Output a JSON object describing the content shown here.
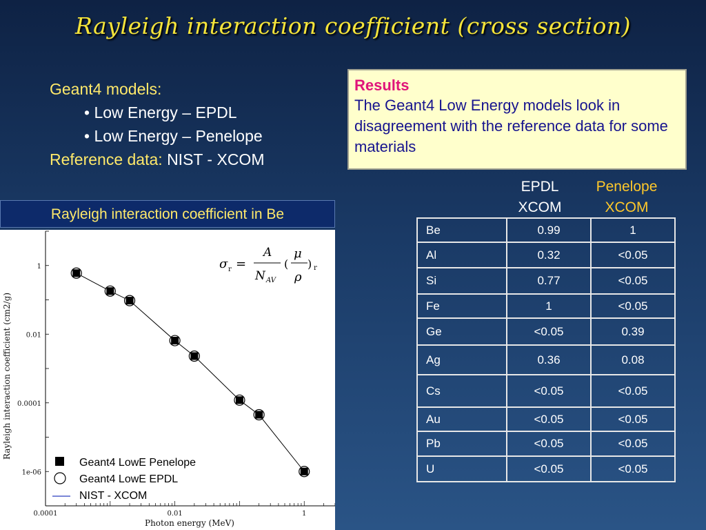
{
  "slide": {
    "title": "Rayleigh interaction coefficient (cross section)",
    "models_heading": "Geant4 models:",
    "models": [
      "• Low Energy – EPDL",
      "• Low Energy – Penelope"
    ],
    "reference_label": "Reference data:",
    "reference_value": "NIST - XCOM"
  },
  "results_box": {
    "title": "Results",
    "text": "The Geant4 Low Energy models look in disagreement with the reference data for some materials"
  },
  "chart_title": "Rayleigh interaction coefficient in Be",
  "formula": {
    "sigma": "σ",
    "sub_r": "r",
    "eq": "=",
    "A": "A",
    "N": "N",
    "AV": "AV",
    "lp": "(",
    "mu": "μ",
    "rho": "ρ",
    "rp": ")"
  },
  "table": {
    "header": {
      "epdl": [
        "EPDL",
        "XCOM"
      ],
      "penelope": [
        "Penelope",
        "XCOM"
      ]
    },
    "rows": [
      {
        "element": "Be",
        "epdl": "0.99",
        "penelope": "1"
      },
      {
        "element": "Al",
        "epdl": "0.32",
        "penelope": "<0.05"
      },
      {
        "element": "Si",
        "epdl": "0.77",
        "penelope": "<0.05"
      },
      {
        "element": "Fe",
        "epdl": "1",
        "penelope": "<0.05"
      },
      {
        "element": "Ge",
        "epdl": "<0.05",
        "penelope": "0.39"
      },
      {
        "element": "Ag",
        "epdl": "0.36",
        "penelope": "0.08"
      },
      {
        "element": "Cs",
        "epdl": "<0.05",
        "penelope": "<0.05"
      },
      {
        "element": "Au",
        "epdl": "<0.05",
        "penelope": "<0.05"
      },
      {
        "element": "Pb",
        "epdl": "<0.05",
        "penelope": "<0.05"
      },
      {
        "element": "U",
        "epdl": "<0.05",
        "penelope": "<0.05"
      }
    ]
  },
  "colors": {
    "title": "#f5e43a",
    "accent_yellow": "#ffe96a",
    "penelope_header": "#ffc82a",
    "results_bg": "#ffffcc",
    "results_title": "#e0147a",
    "results_text": "#16138e"
  },
  "chart_data": {
    "type": "scatter",
    "title": "",
    "xlabel": "Photon energy (MeV)",
    "ylabel": "Rayleigh interaction coefficient (cm2/g)",
    "xscale": "log",
    "yscale": "log",
    "xlim": [
      0.0001,
      3
    ],
    "ylim": [
      1e-07,
      10
    ],
    "xticks": [
      0.0001,
      0.01,
      1
    ],
    "xtick_labels": [
      "0.0001",
      "0.01",
      "1"
    ],
    "yticks": [
      1,
      0.01,
      0.0001,
      1e-06
    ],
    "ytick_labels": [
      "1",
      "0.01",
      "0.0001",
      "1e-06"
    ],
    "legend_position": "bottom-left",
    "series": [
      {
        "name": "Geant4 LowE Penelope",
        "marker": "filled-square",
        "x": [
          0.0003,
          0.001,
          0.002,
          0.01,
          0.02,
          0.1,
          0.2,
          1
        ],
        "y": [
          0.6,
          0.18,
          0.095,
          0.0065,
          0.0023,
          0.00012,
          4.5e-05,
          1e-06
        ]
      },
      {
        "name": "Geant4 LowE EPDL",
        "marker": "open-circle",
        "x": [
          0.0003,
          0.001,
          0.002,
          0.01,
          0.02,
          0.1,
          0.2,
          1
        ],
        "y": [
          0.6,
          0.18,
          0.095,
          0.0065,
          0.0023,
          0.00012,
          4.5e-05,
          1e-06
        ]
      },
      {
        "name": "NIST - XCOM",
        "marker": "line",
        "x": [
          0.0003,
          0.001,
          0.002,
          0.01,
          0.02,
          0.1,
          0.2,
          1
        ],
        "y": [
          0.6,
          0.18,
          0.095,
          0.0065,
          0.0023,
          0.00012,
          4.5e-05,
          1e-06
        ]
      }
    ]
  }
}
